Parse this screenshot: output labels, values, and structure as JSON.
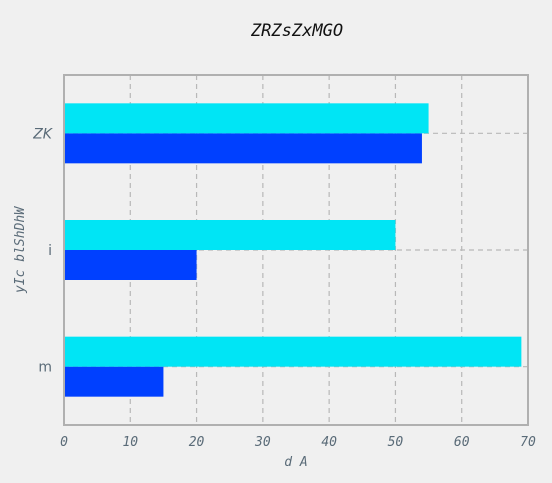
{
  "chart_data": {
    "type": "bar",
    "orientation": "horizontal",
    "title": "ZRZsZxMGO",
    "xlabel": "d A",
    "ylabel": "yIc blShDhW",
    "categories": [
      "m",
      "i",
      "ZK"
    ],
    "series": [
      {
        "color": "#0040ff",
        "values": [
          15,
          20,
          54
        ]
      },
      {
        "color": "#00e5f5",
        "values": [
          69,
          50,
          55
        ]
      }
    ],
    "xlim": [
      0,
      70
    ],
    "xticks": [
      0,
      10,
      20,
      30,
      40,
      50,
      60,
      70
    ],
    "grid": true,
    "legend": "none"
  }
}
